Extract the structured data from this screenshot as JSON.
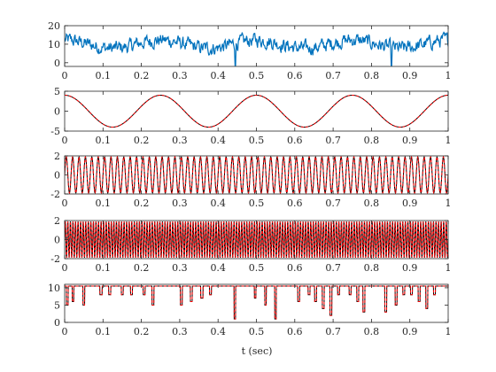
{
  "chart_data": {
    "type": "line",
    "xlabel": "t (sec)",
    "x_range": [
      0,
      1
    ],
    "x_ticks": [
      "0",
      "0.1",
      "0.2",
      "0.3",
      "0.4",
      "0.5",
      "0.6",
      "0.7",
      "0.8",
      "0.9",
      "1"
    ],
    "grid": false,
    "colors": {
      "signal": "#0072BD",
      "reference": "#000000",
      "overlay": "#FF0000"
    },
    "panels": [
      {
        "id": "p1",
        "ylim": [
          -2,
          20
        ],
        "y_ticks": [
          {
            "v": 0,
            "label": "0"
          },
          {
            "v": 10,
            "label": "10"
          },
          {
            "v": 20,
            "label": "20"
          }
        ],
        "series": [
          {
            "style": "solid-blue"
          }
        ]
      },
      {
        "id": "p2",
        "ylim": [
          -5,
          5
        ],
        "y_ticks": [
          {
            "v": -5,
            "label": "-5"
          },
          {
            "v": 0,
            "label": "0"
          },
          {
            "v": 5,
            "label": "5"
          }
        ],
        "component": {
          "amplitude": 4,
          "frequency": 4,
          "form": "cos"
        },
        "series": [
          {
            "style": "solid-black"
          },
          {
            "style": "dashed-red"
          }
        ]
      },
      {
        "id": "p3",
        "ylim": [
          -2,
          2
        ],
        "y_ticks": [
          {
            "v": -2,
            "label": "-2"
          },
          {
            "v": 0,
            "label": "0"
          },
          {
            "v": 2,
            "label": "2"
          }
        ],
        "component": {
          "amplitude": 1.9,
          "frequency": 60,
          "form": "sin"
        },
        "series": [
          {
            "style": "solid-black"
          },
          {
            "style": "dashed-red"
          }
        ]
      },
      {
        "id": "p4",
        "ylim": [
          -2,
          2
        ],
        "y_ticks": [
          {
            "v": -2,
            "label": "-2"
          },
          {
            "v": 0,
            "label": "0"
          },
          {
            "v": 2,
            "label": "2"
          }
        ],
        "component": {
          "amplitude": 1.9,
          "frequency": 150,
          "form": "sin"
        },
        "series": [
          {
            "style": "solid-black"
          },
          {
            "style": "dashed-red"
          }
        ]
      },
      {
        "id": "p5",
        "ylim": [
          0,
          11
        ],
        "y_ticks": [
          {
            "v": 0,
            "label": "0"
          },
          {
            "v": 5,
            "label": "5"
          },
          {
            "v": 10,
            "label": "10"
          }
        ],
        "baseline": 10.5,
        "dips": [
          {
            "t": 0.005,
            "w": 0.004,
            "y": 5
          },
          {
            "t": 0.02,
            "w": 0.004,
            "y": 6
          },
          {
            "t": 0.048,
            "w": 0.004,
            "y": 5
          },
          {
            "t": 0.092,
            "w": 0.006,
            "y": 8
          },
          {
            "t": 0.115,
            "w": 0.005,
            "y": 8
          },
          {
            "t": 0.148,
            "w": 0.005,
            "y": 8
          },
          {
            "t": 0.172,
            "w": 0.005,
            "y": 8
          },
          {
            "t": 0.205,
            "w": 0.005,
            "y": 8
          },
          {
            "t": 0.228,
            "w": 0.005,
            "y": 5
          },
          {
            "t": 0.302,
            "w": 0.005,
            "y": 5
          },
          {
            "t": 0.328,
            "w": 0.005,
            "y": 6
          },
          {
            "t": 0.355,
            "w": 0.006,
            "y": 7
          },
          {
            "t": 0.378,
            "w": 0.005,
            "y": 8
          },
          {
            "t": 0.442,
            "w": 0.004,
            "y": 1
          },
          {
            "t": 0.495,
            "w": 0.004,
            "y": 7
          },
          {
            "t": 0.522,
            "w": 0.004,
            "y": 5
          },
          {
            "t": 0.548,
            "w": 0.004,
            "y": 1
          },
          {
            "t": 0.608,
            "w": 0.005,
            "y": 6
          },
          {
            "t": 0.635,
            "w": 0.005,
            "y": 8
          },
          {
            "t": 0.652,
            "w": 0.005,
            "y": 6
          },
          {
            "t": 0.672,
            "w": 0.005,
            "y": 4
          },
          {
            "t": 0.692,
            "w": 0.005,
            "y": 2
          },
          {
            "t": 0.712,
            "w": 0.005,
            "y": 8
          },
          {
            "t": 0.742,
            "w": 0.005,
            "y": 8
          },
          {
            "t": 0.762,
            "w": 0.005,
            "y": 6
          },
          {
            "t": 0.778,
            "w": 0.005,
            "y": 3
          },
          {
            "t": 0.835,
            "w": 0.005,
            "y": 3
          },
          {
            "t": 0.862,
            "w": 0.005,
            "y": 5
          },
          {
            "t": 0.882,
            "w": 0.005,
            "y": 8
          },
          {
            "t": 0.902,
            "w": 0.005,
            "y": 8
          },
          {
            "t": 0.922,
            "w": 0.005,
            "y": 6
          },
          {
            "t": 0.942,
            "w": 0.005,
            "y": 4
          },
          {
            "t": 0.962,
            "w": 0.005,
            "y": 8
          }
        ],
        "series": [
          {
            "style": "solid-black"
          },
          {
            "style": "dashed-red"
          }
        ]
      }
    ]
  }
}
